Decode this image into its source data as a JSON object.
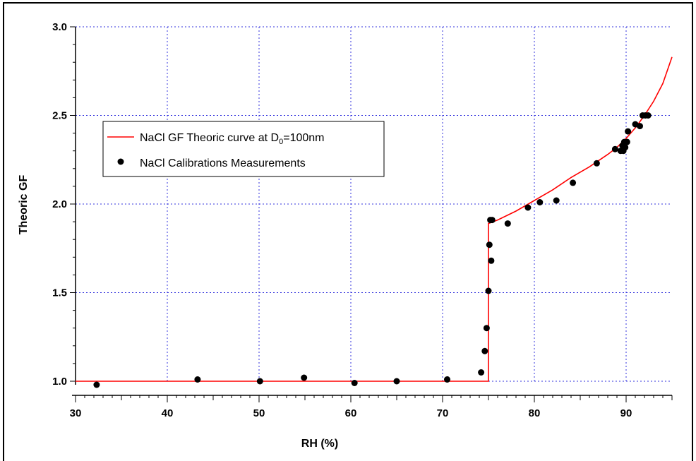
{
  "chart_data": {
    "type": "scatter",
    "xlabel": "RH (%)",
    "ylabel": "Theoric GF",
    "xlim": [
      30,
      95
    ],
    "ylim": [
      1.0,
      3.0
    ],
    "x_ticks": [
      30,
      40,
      50,
      60,
      70,
      80,
      90
    ],
    "y_ticks": [
      "1.0",
      "1.5",
      "2.0",
      "2.5",
      "3.0"
    ],
    "grid": true,
    "legend_position": "upper-left",
    "legend": {
      "curve_label_main": "NaCl GF Theoric curve at D",
      "curve_label_sub": "0",
      "curve_label_end": "=100nm",
      "points_label": "NaCl Calibrations Measurements"
    },
    "series": [
      {
        "name": "NaCl GF Theoric curve at D0=100nm",
        "kind": "line",
        "color": "#ff0000",
        "x": [
          30,
          75.0,
          75.0,
          76,
          78,
          80,
          82,
          84,
          86,
          88,
          89,
          90,
          91,
          92,
          93,
          94,
          95
        ],
        "y": [
          1.0,
          1.0,
          1.89,
          1.91,
          1.96,
          2.02,
          2.08,
          2.15,
          2.21,
          2.28,
          2.32,
          2.37,
          2.43,
          2.5,
          2.58,
          2.68,
          2.83
        ]
      },
      {
        "name": "NaCl Calibrations Measurements",
        "kind": "scatter",
        "color": "#000000",
        "x": [
          32.3,
          43.3,
          50.1,
          54.9,
          60.4,
          65.0,
          70.5,
          74.2,
          74.6,
          74.8,
          75.0,
          75.1,
          75.2,
          75.3,
          75.4,
          77.1,
          79.3,
          80.6,
          82.4,
          84.2,
          86.8,
          88.8,
          89.4,
          89.6,
          89.7,
          89.8,
          89.9,
          90.1,
          90.2,
          91.0,
          91.5,
          91.8,
          92.1,
          92.4
        ],
        "y": [
          0.98,
          1.01,
          1.0,
          1.02,
          0.99,
          1.0,
          1.01,
          1.05,
          1.17,
          1.3,
          1.51,
          1.77,
          1.91,
          1.68,
          1.91,
          1.89,
          1.98,
          2.01,
          2.02,
          2.12,
          2.23,
          2.31,
          2.3,
          2.33,
          2.3,
          2.35,
          2.32,
          2.35,
          2.41,
          2.45,
          2.44,
          2.5,
          2.5,
          2.5
        ]
      }
    ]
  }
}
